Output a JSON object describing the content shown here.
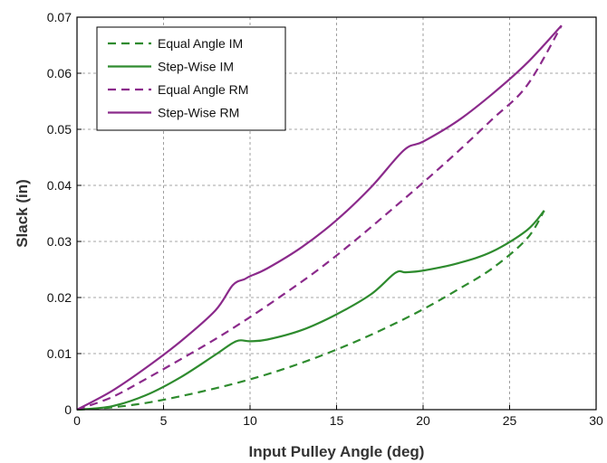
{
  "chart_data": {
    "type": "line",
    "xlabel": "Input Pulley Angle (deg)",
    "ylabel": "Slack (in)",
    "xlim": [
      0,
      30
    ],
    "ylim": [
      0,
      0.07
    ],
    "xticks": [
      "0",
      "5",
      "10",
      "15",
      "20",
      "25",
      "30"
    ],
    "yticks": [
      "0",
      "0.01",
      "0.02",
      "0.03",
      "0.04",
      "0.05",
      "0.06",
      "0.07"
    ],
    "grid": true,
    "legend_position": "top-left",
    "series": [
      {
        "name": "Equal Angle IM",
        "color": "#2e8b2e",
        "dash": "dashed",
        "points": [
          [
            0,
            0
          ],
          [
            2,
            0.0004
          ],
          [
            4,
            0.0012
          ],
          [
            6,
            0.0024
          ],
          [
            8,
            0.0038
          ],
          [
            10,
            0.0054
          ],
          [
            12,
            0.0073
          ],
          [
            14,
            0.0095
          ],
          [
            16,
            0.012
          ],
          [
            18,
            0.0148
          ],
          [
            20,
            0.0179
          ],
          [
            22,
            0.0214
          ],
          [
            24,
            0.0252
          ],
          [
            26,
            0.0305
          ],
          [
            27,
            0.0355
          ]
        ]
      },
      {
        "name": "Step-Wise IM",
        "color": "#2e8b2e",
        "dash": "solid",
        "points": [
          [
            0,
            0
          ],
          [
            2,
            0.0006
          ],
          [
            4,
            0.0026
          ],
          [
            6,
            0.0058
          ],
          [
            8,
            0.0098
          ],
          [
            9.2,
            0.0122
          ],
          [
            10,
            0.0122
          ],
          [
            11,
            0.0125
          ],
          [
            13,
            0.0142
          ],
          [
            15,
            0.017
          ],
          [
            17,
            0.0206
          ],
          [
            18.4,
            0.0244
          ],
          [
            19,
            0.0245
          ],
          [
            20,
            0.0248
          ],
          [
            22,
            0.0261
          ],
          [
            24,
            0.0282
          ],
          [
            26,
            0.032
          ],
          [
            27,
            0.0355
          ]
        ]
      },
      {
        "name": "Equal Angle RM",
        "color": "#8b2a8b",
        "dash": "dashed",
        "points": [
          [
            0,
            0
          ],
          [
            2,
            0.0022
          ],
          [
            4,
            0.0055
          ],
          [
            6,
            0.009
          ],
          [
            8,
            0.0126
          ],
          [
            10,
            0.0165
          ],
          [
            12,
            0.0207
          ],
          [
            14,
            0.0251
          ],
          [
            16,
            0.03
          ],
          [
            18,
            0.0352
          ],
          [
            20,
            0.0405
          ],
          [
            22,
            0.046
          ],
          [
            24,
            0.0518
          ],
          [
            26,
            0.0578
          ],
          [
            28,
            0.0685
          ]
        ]
      },
      {
        "name": "Step-Wise RM",
        "color": "#8b2a8b",
        "dash": "solid",
        "points": [
          [
            0,
            0
          ],
          [
            2,
            0.0033
          ],
          [
            4,
            0.0075
          ],
          [
            6,
            0.0122
          ],
          [
            8,
            0.0177
          ],
          [
            9,
            0.0222
          ],
          [
            9.7,
            0.0233
          ],
          [
            10,
            0.0238
          ],
          [
            11,
            0.0252
          ],
          [
            13,
            0.029
          ],
          [
            15,
            0.0338
          ],
          [
            17,
            0.0397
          ],
          [
            18.9,
            0.0463
          ],
          [
            20,
            0.0478
          ],
          [
            22,
            0.0515
          ],
          [
            24,
            0.0563
          ],
          [
            26,
            0.0618
          ],
          [
            28,
            0.0685
          ]
        ]
      }
    ]
  }
}
